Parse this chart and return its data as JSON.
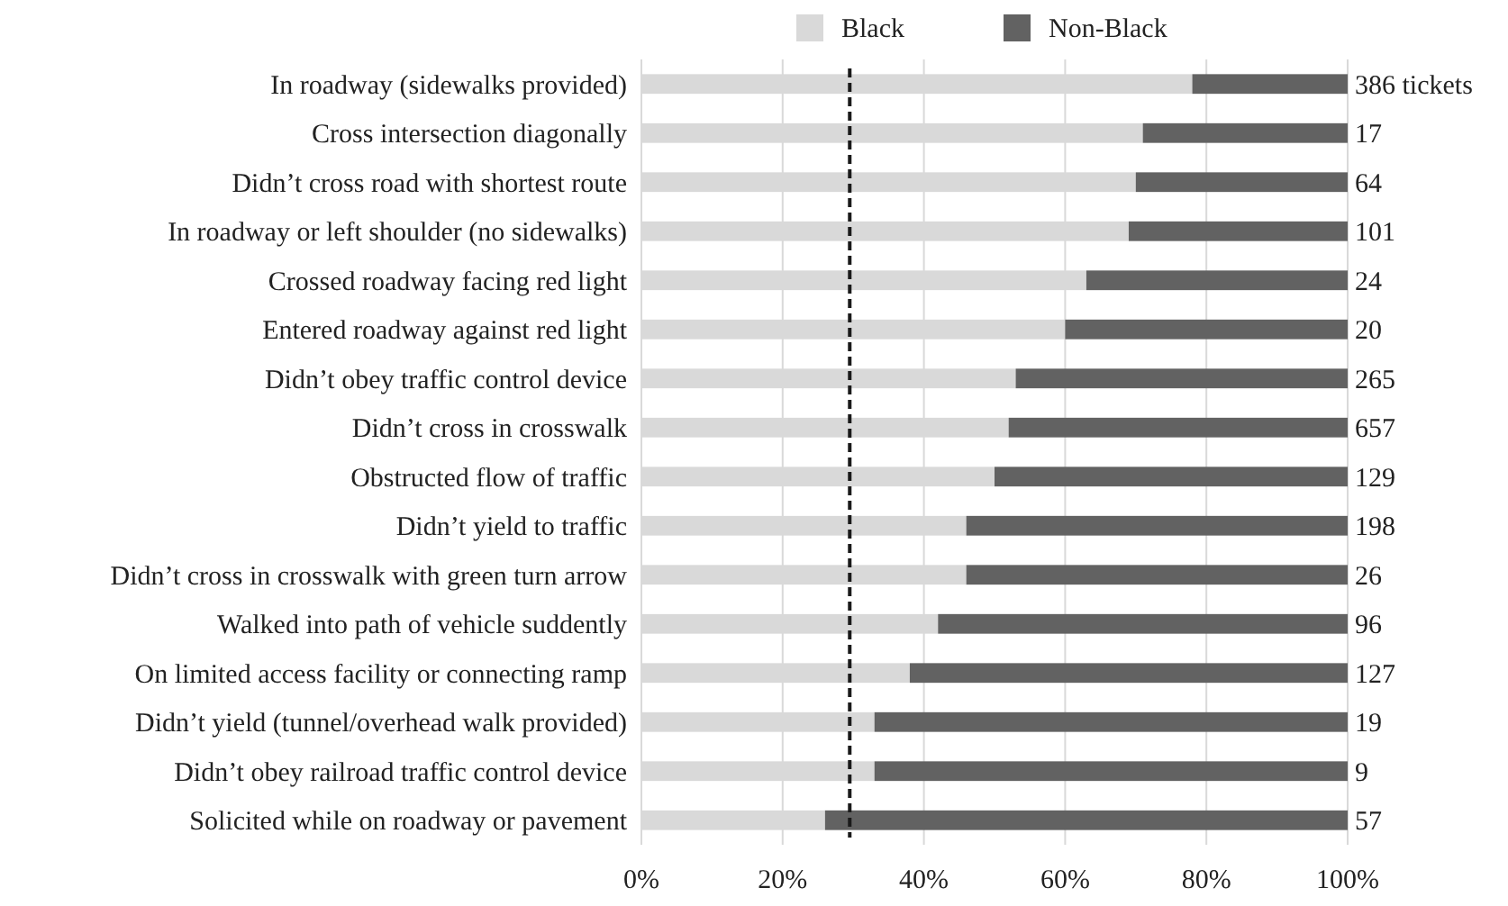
{
  "chart_data": {
    "type": "bar",
    "orientation": "horizontal",
    "stacked": true,
    "categories": [
      "In roadway (sidewalks provided)",
      "Cross intersection diagonally",
      "Didn’t cross road with shortest route",
      "In roadway or left shoulder (no sidewalks)",
      "Crossed roadway facing red light",
      "Entered roadway against red light",
      "Didn’t obey traffic control device",
      "Didn’t cross in crosswalk",
      "Obstructed flow of traffic",
      "Didn’t yield to traffic",
      "Didn’t cross in crosswalk with green turn arrow",
      "Walked into path of vehicle suddently",
      "On limited access facility or connecting ramp",
      "Didn’t yield (tunnel/overhead walk provided)",
      "Didn’t obey railroad traffic control device",
      "Solicited while on roadway or pavement"
    ],
    "series": [
      {
        "name": "Black",
        "color": "#d9d9d9",
        "values": [
          78,
          71,
          70,
          69,
          63,
          60,
          53,
          52,
          50,
          46,
          46,
          42,
          38,
          33,
          33,
          26
        ]
      },
      {
        "name": "Non-Black",
        "color": "#626262",
        "values": [
          22,
          29,
          30,
          31,
          37,
          40,
          47,
          48,
          50,
          54,
          54,
          58,
          62,
          67,
          67,
          74
        ]
      }
    ],
    "annotations": [
      "386 tickets",
      "17",
      "64",
      "101",
      "24",
      "20",
      "265",
      "657",
      "129",
      "198",
      "26",
      "96",
      "127",
      "19",
      "9",
      "57"
    ],
    "xlim": [
      0,
      100
    ],
    "xticks": [
      {
        "value": 0,
        "label": "0%"
      },
      {
        "value": 20,
        "label": "20%"
      },
      {
        "value": 40,
        "label": "40%"
      },
      {
        "value": 60,
        "label": "60%"
      },
      {
        "value": 80,
        "label": "80%"
      },
      {
        "value": 100,
        "label": "100%"
      }
    ],
    "ref_lines": [
      {
        "axis": "x",
        "value": 29.5,
        "color": "#1a1a1a",
        "line_style": "dashed"
      }
    ],
    "grid": "x",
    "legend": "top"
  }
}
